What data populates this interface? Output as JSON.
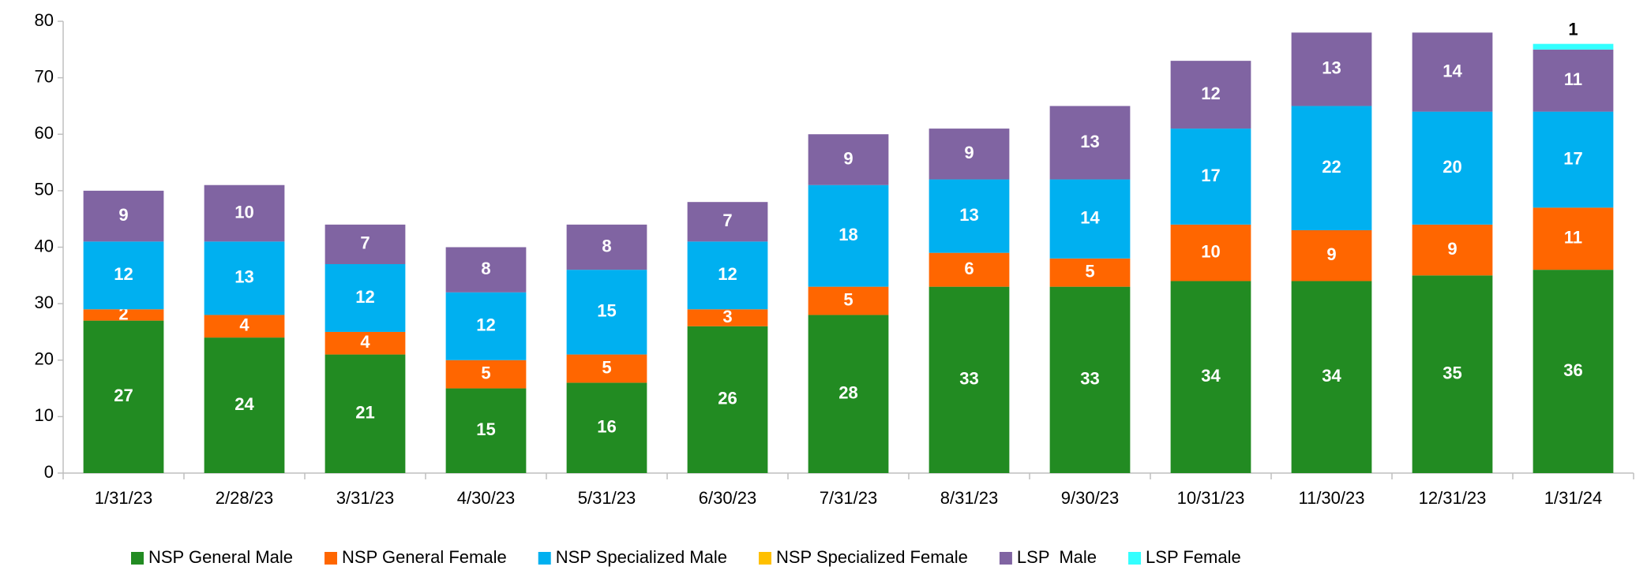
{
  "chart_data": {
    "type": "stacked_bar",
    "categories": [
      "1/31/23",
      "2/28/23",
      "3/31/23",
      "4/30/23",
      "5/31/23",
      "6/30/23",
      "7/31/23",
      "8/31/23",
      "9/30/23",
      "10/31/23",
      "11/30/23",
      "12/31/23",
      "1/31/24"
    ],
    "series": [
      {
        "name": "NSP General Male",
        "color": "#228b22",
        "values": [
          27,
          24,
          21,
          15,
          16,
          26,
          28,
          33,
          33,
          34,
          34,
          35,
          36
        ]
      },
      {
        "name": "NSP General Female",
        "color": "#ff6600",
        "values": [
          2,
          4,
          4,
          5,
          5,
          3,
          5,
          6,
          5,
          10,
          9,
          9,
          11
        ]
      },
      {
        "name": "NSP Specialized Male",
        "color": "#00b0f0",
        "values": [
          12,
          13,
          12,
          12,
          15,
          12,
          18,
          13,
          14,
          17,
          22,
          20,
          17
        ]
      },
      {
        "name": "NSP Specialized Female",
        "color": "#ffc000",
        "values": [
          0,
          0,
          0,
          0,
          0,
          0,
          0,
          0,
          0,
          0,
          0,
          0,
          0
        ]
      },
      {
        "name": "LSP  Male",
        "color": "#8064a2",
        "values": [
          9,
          10,
          7,
          8,
          8,
          7,
          9,
          9,
          13,
          12,
          13,
          14,
          11
        ]
      },
      {
        "name": "LSP Female",
        "color": "#33ffff",
        "values": [
          0,
          0,
          0,
          0,
          0,
          0,
          0,
          0,
          0,
          0,
          0,
          0,
          1
        ]
      }
    ],
    "ylim": [
      0,
      80
    ],
    "yticks": [
      0,
      10,
      20,
      30,
      40,
      50,
      60,
      70,
      80
    ],
    "grid": false
  }
}
